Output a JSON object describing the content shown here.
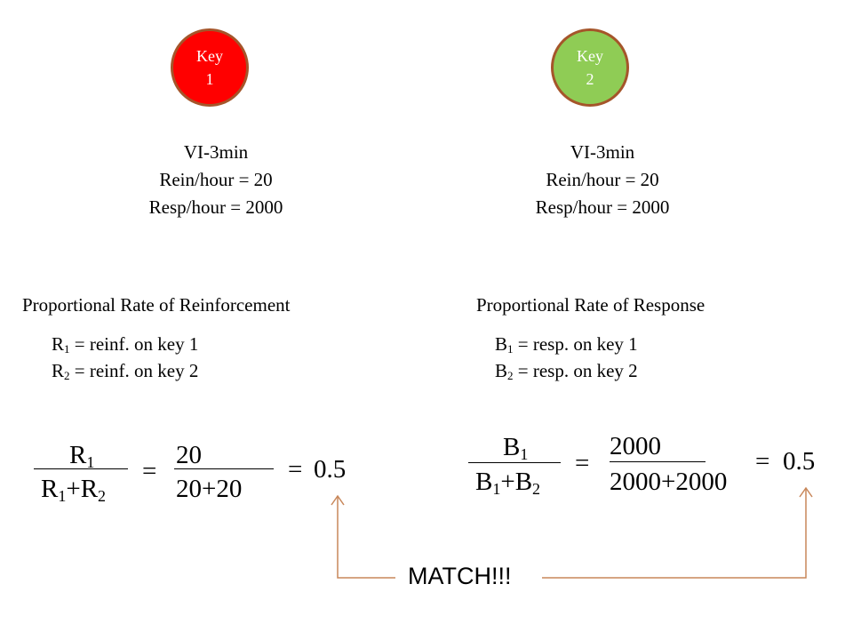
{
  "keys": [
    {
      "line1": "Key",
      "line2": "1",
      "color": "#ff0000"
    },
    {
      "line1": "Key",
      "line2": "2",
      "color": "#8fcc55"
    }
  ],
  "schedules": [
    {
      "type": "VI-3min",
      "rein": "Rein/hour = 20",
      "resp": "Resp/hour = 2000"
    },
    {
      "type": "VI-3min",
      "rein": "Rein/hour = 20",
      "resp": "Resp/hour = 2000"
    }
  ],
  "left": {
    "heading": "Proportional Rate of Reinforcement",
    "def1": {
      "sym": "R",
      "sub": "1",
      "text": " = reinf. on key 1"
    },
    "def2": {
      "sym": "R",
      "sub": "2",
      "text": " = reinf. on key 2"
    },
    "formula": {
      "num_sym": "R",
      "num_sub": "1",
      "den_a": "R",
      "den_a_sub": "1",
      "den_plus": "+",
      "den_b": "R",
      "den_b_sub": "2",
      "equals": "=",
      "num_value": "20",
      "den_value": "20+20",
      "result_eq": "=",
      "result": "0.5"
    }
  },
  "right": {
    "heading": "Proportional Rate of Response",
    "def1": {
      "sym": "B",
      "sub": "1",
      "text": " = resp. on key 1"
    },
    "def2": {
      "sym": "B",
      "sub": "2",
      "text": " = resp. on key 2"
    },
    "formula": {
      "num_sym": "B",
      "num_sub": "1",
      "den_a": "B",
      "den_a_sub": "1",
      "den_plus": "+",
      "den_b": "B",
      "den_b_sub": "2",
      "equals": "=",
      "num_value": "2000",
      "den_value": "2000+2000",
      "result_eq": "=",
      "result": "0.5"
    }
  },
  "match_label": "MATCH!!!",
  "connector_color": "#c8875a"
}
